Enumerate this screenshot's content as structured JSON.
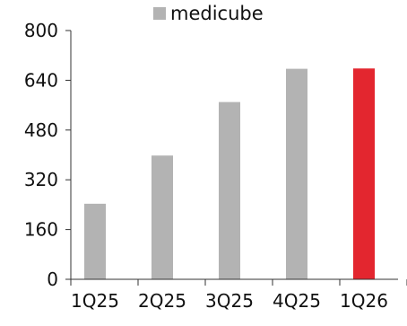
{
  "chart_data": {
    "type": "bar",
    "categories": [
      "1Q25",
      "2Q25",
      "3Q25",
      "4Q25",
      "1Q26"
    ],
    "series": [
      {
        "name": "medicube",
        "values": [
          243,
          398,
          570,
          677,
          678
        ]
      }
    ],
    "ylim": [
      0,
      800
    ],
    "yticks": [
      0,
      160,
      320,
      480,
      640,
      800
    ],
    "grid": false,
    "legend": "top-center",
    "highlight_index": 4,
    "colors": {
      "bar": "#b3b3b3",
      "highlight": "#e3262f",
      "axis": "#333333"
    }
  }
}
